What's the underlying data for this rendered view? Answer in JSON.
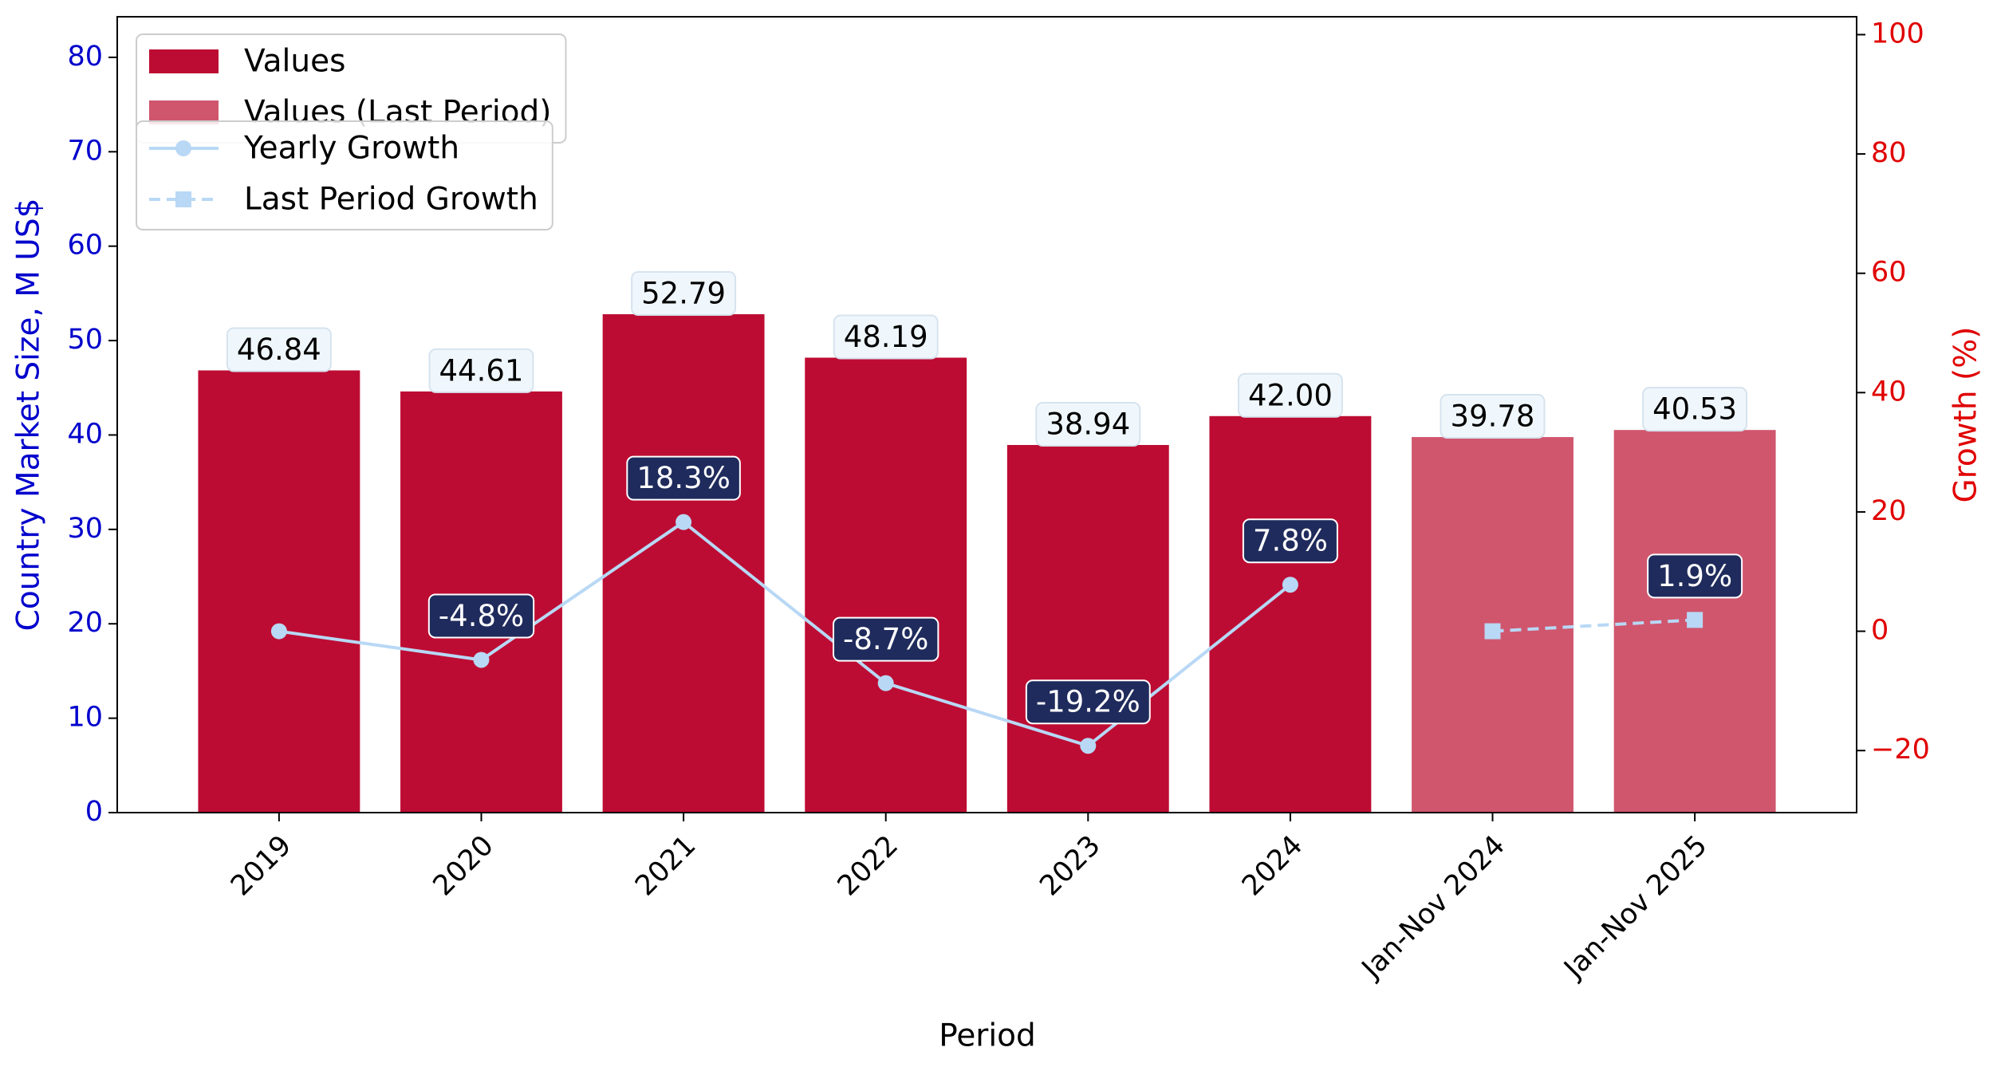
{
  "chart_data": {
    "type": "bar",
    "categories": [
      "2019",
      "2020",
      "2021",
      "2022",
      "2023",
      "2024",
      "Jan-Nov 2024",
      "Jan-Nov 2025"
    ],
    "x_label": "Period",
    "y_label": "Country Market Size, M US$",
    "y2_label": "Growth (%)",
    "ylim": [
      0,
      84.3
    ],
    "yticks": [
      0,
      10,
      20,
      30,
      40,
      50,
      60,
      70,
      80
    ],
    "y2lim": [
      -30.4,
      103
    ],
    "y2ticks": [
      {
        "value": -20,
        "label": "−20"
      },
      0,
      20,
      40,
      60,
      80,
      100
    ],
    "y_color": "#0000cc",
    "y2_color": "#e00000",
    "legend": "upper left",
    "series": [
      {
        "name": "Values",
        "kind": "bar",
        "color": "#bd0c33",
        "values": [
          46.84,
          44.61,
          52.79,
          48.19,
          38.94,
          42.0,
          null,
          null
        ],
        "value_labels": [
          "46.84",
          "44.61",
          "52.79",
          "48.19",
          "38.94",
          "42.00",
          null,
          null
        ]
      },
      {
        "name": "Values (Last Period)",
        "kind": "bar",
        "color": "#d0566e",
        "values": [
          null,
          null,
          null,
          null,
          null,
          null,
          39.78,
          40.53
        ],
        "value_labels": [
          null,
          null,
          null,
          null,
          null,
          null,
          "39.78",
          "40.53"
        ]
      },
      {
        "name": "Yearly Growth",
        "kind": "line",
        "axis": "y2",
        "color": "#b8d8f5",
        "marker": "circle",
        "dash": false,
        "values": [
          0,
          -4.8,
          18.3,
          -8.7,
          -19.2,
          7.8,
          null,
          null
        ],
        "value_labels": [
          null,
          "-4.8%",
          "18.3%",
          "-8.7%",
          "-19.2%",
          "7.8%",
          null,
          null
        ]
      },
      {
        "name": "Last Period Growth",
        "kind": "line",
        "axis": "y2",
        "color": "#b8d8f5",
        "marker": "square",
        "dash": true,
        "values": [
          null,
          null,
          null,
          null,
          null,
          null,
          0,
          1.9
        ],
        "value_labels": [
          null,
          null,
          null,
          null,
          null,
          null,
          null,
          "1.9%"
        ]
      }
    ]
  }
}
